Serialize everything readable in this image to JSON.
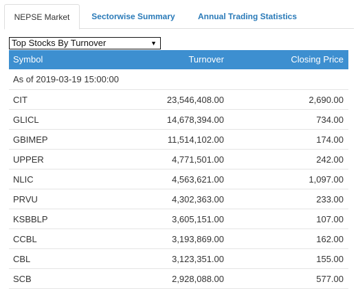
{
  "tabs": [
    {
      "label": "NEPSE Market",
      "active": true
    },
    {
      "label": "Sectorwise Summary",
      "active": false
    },
    {
      "label": "Annual Trading Statistics",
      "active": false
    }
  ],
  "selector": {
    "value": "Top Stocks By Turnover"
  },
  "table": {
    "headers": {
      "symbol": "Symbol",
      "turnover": "Turnover",
      "closing_price": "Closing Price"
    },
    "as_of": "As of 2019-03-19 15:00:00",
    "rows": [
      {
        "symbol": "CIT",
        "turnover": "23,546,408.00",
        "closing_price": "2,690.00"
      },
      {
        "symbol": "GLICL",
        "turnover": "14,678,394.00",
        "closing_price": "734.00"
      },
      {
        "symbol": "GBIMEP",
        "turnover": "11,514,102.00",
        "closing_price": "174.00"
      },
      {
        "symbol": "UPPER",
        "turnover": "4,771,501.00",
        "closing_price": "242.00"
      },
      {
        "symbol": "NLIC",
        "turnover": "4,563,621.00",
        "closing_price": "1,097.00"
      },
      {
        "symbol": "PRVU",
        "turnover": "4,302,363.00",
        "closing_price": "233.00"
      },
      {
        "symbol": "KSBBLP",
        "turnover": "3,605,151.00",
        "closing_price": "107.00"
      },
      {
        "symbol": "CCBL",
        "turnover": "3,193,869.00",
        "closing_price": "162.00"
      },
      {
        "symbol": "CBL",
        "turnover": "3,123,351.00",
        "closing_price": "155.00"
      },
      {
        "symbol": "SCB",
        "turnover": "2,928,088.00",
        "closing_price": "577.00"
      }
    ]
  }
}
